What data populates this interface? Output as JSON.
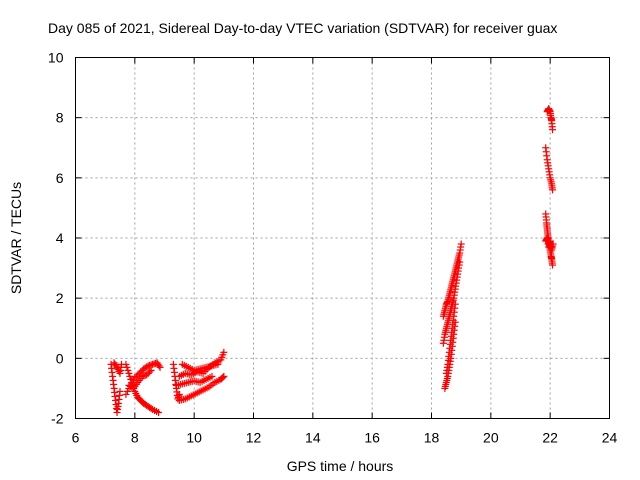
{
  "chart_data": {
    "type": "scatter",
    "title": "Day 085 of 2021, Sidereal Day-to-day VTEC variation (SDTVAR) for receiver guax",
    "xlabel": "GPS time / hours",
    "ylabel": "SDTVAR / TECUs",
    "xlim": [
      6,
      24
    ],
    "ylim": [
      -2,
      10
    ],
    "xticks": [
      6,
      8,
      10,
      12,
      14,
      16,
      18,
      20,
      22,
      24
    ],
    "yticks": [
      -2,
      0,
      2,
      4,
      6,
      8,
      10
    ],
    "grid": true,
    "marker": "+",
    "color": "#ff0000",
    "series": [
      {
        "name": "SDTVAR",
        "segments": [
          {
            "x": [
              7.2,
              7.25,
              7.3,
              7.35,
              7.4,
              7.45,
              7.5
            ],
            "y": [
              -0.2,
              -0.6,
              -1.0,
              -1.4,
              -1.8,
              -1.5,
              -1.1
            ]
          },
          {
            "x": [
              7.3,
              7.4,
              7.5,
              7.55
            ],
            "y": [
              -0.15,
              -0.3,
              -0.5,
              -0.2
            ]
          },
          {
            "x": [
              7.7,
              7.8,
              7.9,
              8.0,
              8.1,
              8.2,
              8.3,
              8.45,
              8.6,
              8.8
            ],
            "y": [
              -0.2,
              -0.5,
              -0.8,
              -1.1,
              -1.3,
              -1.4,
              -1.5,
              -1.6,
              -1.7,
              -1.8
            ]
          },
          {
            "x": [
              7.7,
              7.85,
              8.0,
              8.15,
              8.3,
              8.45,
              8.6,
              8.75,
              8.85
            ],
            "y": [
              -1.2,
              -0.9,
              -0.65,
              -0.5,
              -0.35,
              -0.25,
              -0.2,
              -0.15,
              -0.3
            ]
          },
          {
            "x": [
              7.8,
              7.95,
              8.1,
              8.25,
              8.4,
              8.55
            ],
            "y": [
              -0.9,
              -1.0,
              -0.8,
              -0.6,
              -0.55,
              -0.4
            ]
          },
          {
            "x": [
              9.3,
              9.35,
              9.4,
              9.45,
              9.5
            ],
            "y": [
              -0.2,
              -0.6,
              -1.0,
              -1.35,
              -1.2
            ]
          },
          {
            "x": [
              9.5,
              9.7,
              9.9,
              10.1,
              10.3,
              10.5,
              10.7,
              10.9,
              11.0
            ],
            "y": [
              -1.4,
              -1.35,
              -1.25,
              -1.15,
              -1.05,
              -0.95,
              -0.8,
              -0.7,
              -0.6
            ]
          },
          {
            "x": [
              9.5,
              9.7,
              9.9,
              10.1,
              10.3,
              10.5,
              10.7,
              10.9,
              11.0
            ],
            "y": [
              -0.6,
              -0.5,
              -0.55,
              -0.45,
              -0.5,
              -0.3,
              -0.15,
              -0.05,
              0.2
            ]
          },
          {
            "x": [
              9.6,
              9.8,
              10.0,
              10.2,
              10.4,
              10.6,
              10.8
            ],
            "y": [
              -0.2,
              -0.3,
              -0.4,
              -0.35,
              -0.3,
              -0.25,
              -0.2
            ]
          },
          {
            "x": [
              9.4,
              9.6,
              9.8,
              10.0,
              10.2,
              10.4,
              10.6
            ],
            "y": [
              -0.9,
              -0.85,
              -0.8,
              -0.75,
              -0.8,
              -0.7,
              -0.6
            ]
          },
          {
            "x": [
              18.4,
              18.45,
              18.5,
              18.55,
              18.6,
              18.65,
              18.7,
              18.75,
              18.8,
              18.85,
              18.9,
              18.95,
              19.0
            ],
            "y": [
              1.4,
              1.6,
              1.8,
              1.9,
              2.1,
              2.3,
              2.5,
              2.7,
              2.9,
              3.1,
              3.3,
              3.5,
              3.8
            ]
          },
          {
            "x": [
              18.4,
              18.45,
              18.5,
              18.55,
              18.6,
              18.65,
              18.7,
              18.75,
              18.8,
              18.85,
              18.9,
              18.95
            ],
            "y": [
              0.5,
              0.8,
              1.0,
              1.2,
              1.4,
              1.6,
              1.8,
              2.0,
              2.3,
              2.6,
              2.9,
              3.2
            ]
          },
          {
            "x": [
              18.45,
              18.5,
              18.55,
              18.6,
              18.65,
              18.7,
              18.75,
              18.8
            ],
            "y": [
              -1.0,
              -0.8,
              -0.6,
              -0.3,
              0.0,
              0.4,
              0.8,
              1.2
            ]
          },
          {
            "x": [
              18.5,
              18.55,
              18.6,
              18.65,
              18.7,
              18.75,
              18.8
            ],
            "y": [
              -0.5,
              -0.2,
              0.2,
              0.6,
              1.0,
              1.4,
              1.8
            ]
          },
          {
            "x": [
              21.85,
              21.88,
              21.9,
              21.92,
              21.95,
              21.98,
              22.0,
              22.03,
              22.05,
              22.08
            ],
            "y": [
              4.8,
              4.5,
              4.3,
              4.1,
              3.9,
              3.8,
              3.6,
              3.4,
              3.3,
              3.1
            ]
          },
          {
            "x": [
              21.85,
              21.9,
              21.95,
              22.0,
              22.05,
              22.1
            ],
            "y": [
              3.9,
              4.0,
              3.7,
              3.9,
              3.6,
              3.8
            ]
          },
          {
            "x": [
              21.85,
              21.9,
              21.95,
              22.0,
              22.05,
              22.08
            ],
            "y": [
              7.0,
              6.6,
              6.3,
              6.0,
              5.8,
              5.6
            ]
          },
          {
            "x": [
              21.9,
              21.95,
              22.0,
              22.03,
              22.05,
              22.08
            ],
            "y": [
              8.2,
              8.3,
              8.2,
              8.0,
              7.9,
              7.6
            ]
          }
        ]
      }
    ]
  }
}
